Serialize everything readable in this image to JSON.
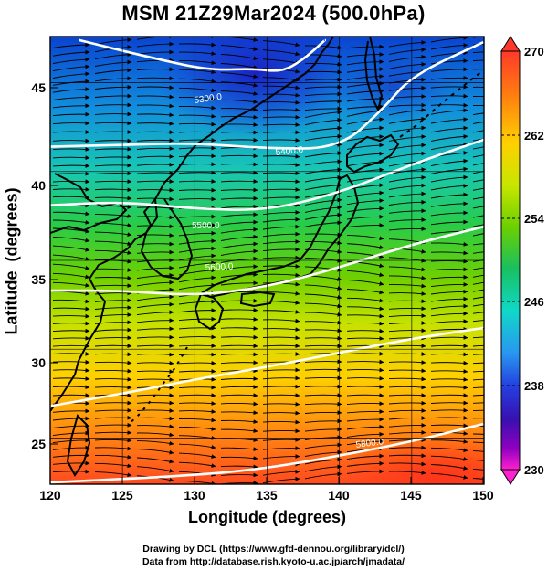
{
  "title": "MSM 21Z29Mar2024 (500.0hPa)",
  "x_axis": {
    "label": "Longitude (degrees)",
    "ticks": [
      "120",
      "125",
      "130",
      "135",
      "140",
      "145",
      "150"
    ]
  },
  "y_axis": {
    "label": "Latitude  (degrees)",
    "ticks": [
      "25",
      "30",
      "35",
      "40",
      "45"
    ]
  },
  "colorbar": {
    "ticks": [
      "270",
      "262",
      "254",
      "246",
      "238",
      "230"
    ],
    "colors": [
      "#ff3a2a",
      "#ff8a10",
      "#ffd000",
      "#c8e600",
      "#6cd000",
      "#18c060",
      "#10d8c8",
      "#2898f0",
      "#2440e0",
      "#3810b0",
      "#b800c8",
      "#ff20d0"
    ]
  },
  "contour_labels": [
    "5300.0",
    "5400.0",
    "5500.0",
    "5600.0",
    "5800.0"
  ],
  "credits": [
    "Drawing by DCL (https://www.gfd-dennou.org/library/dcl/)",
    "Data from http://database.rish.kyoto-u.ac.jp/arch/jmadata/"
  ],
  "chart_data": {
    "type": "heatmap",
    "title": "MSM 21Z29Mar2024 (500.0hPa)",
    "xlabel": "Longitude (degrees)",
    "ylabel": "Latitude  (degrees)",
    "xlim": [
      120,
      150
    ],
    "ylim": [
      22.4,
      47.6
    ],
    "color_range": [
      230,
      270
    ],
    "colorbar_ticks": [
      270,
      262,
      254,
      246,
      238,
      230
    ],
    "temperature_field_estimate": [
      {
        "lat": 46,
        "values_by_lon": {
          "120": 248,
          "125": 244,
          "130": 240,
          "135": 237,
          "140": 242,
          "145": 247,
          "150": 249
        }
      },
      {
        "lat": 40,
        "values_by_lon": {
          "120": 253,
          "125": 252,
          "130": 250,
          "135": 250,
          "140": 251,
          "145": 252,
          "150": 253
        }
      },
      {
        "lat": 35,
        "values_by_lon": {
          "120": 256,
          "125": 256,
          "130": 255,
          "135": 255,
          "140": 256,
          "145": 256,
          "150": 256
        }
      },
      {
        "lat": 30,
        "values_by_lon": {
          "120": 260,
          "125": 260,
          "130": 259,
          "135": 259,
          "140": 259,
          "145": 259,
          "150": 260
        }
      },
      {
        "lat": 26,
        "values_by_lon": {
          "120": 263,
          "125": 264,
          "130": 264,
          "135": 264,
          "140": 263,
          "145": 263,
          "150": 264
        }
      },
      {
        "lat": 23,
        "values_by_lon": {
          "120": 265,
          "125": 266,
          "130": 267,
          "135": 267,
          "140": 267,
          "145": 267,
          "150": 268
        }
      }
    ],
    "height_contours": [
      {
        "label": "5300.0",
        "points": [
          [
            122,
            47.4
          ],
          [
            127,
            46.4
          ],
          [
            131,
            45.7
          ],
          [
            134,
            45.8
          ],
          [
            136,
            45.6
          ],
          [
            137.5,
            46.3
          ],
          [
            139,
            47.4
          ]
        ]
      },
      {
        "label": "5400.0",
        "points": [
          [
            120,
            41.4
          ],
          [
            125,
            41.5
          ],
          [
            130,
            41.6
          ],
          [
            135,
            41.3
          ],
          [
            140,
            41.3
          ],
          [
            143,
            43.5
          ],
          [
            145,
            45.4
          ],
          [
            150,
            47.3
          ]
        ]
      },
      {
        "label": "5500.0",
        "points": [
          [
            120,
            38.1
          ],
          [
            125,
            38.3
          ],
          [
            130,
            37.9
          ],
          [
            135,
            37.8
          ],
          [
            140,
            38.8
          ],
          [
            145,
            40.4
          ],
          [
            150,
            41.8
          ]
        ]
      },
      {
        "label": "5600.0",
        "points": [
          [
            120,
            33.3
          ],
          [
            125,
            33.3
          ],
          [
            130,
            33.0
          ],
          [
            135,
            33.5
          ],
          [
            140,
            34.6
          ],
          [
            145,
            35.9
          ],
          [
            150,
            36.9
          ]
        ]
      },
      {
        "label": "5800.0",
        "points": [
          [
            120,
            26.8
          ],
          [
            125,
            27.5
          ],
          [
            130,
            28.3
          ],
          [
            135,
            29.0
          ],
          [
            140,
            29.8
          ],
          [
            145,
            30.6
          ],
          [
            150,
            31.2
          ]
        ]
      },
      {
        "label": "5900.0",
        "points": [
          [
            120,
            22.5
          ],
          [
            130,
            22.9
          ],
          [
            135,
            23.3
          ],
          [
            140,
            24.0
          ],
          [
            145,
            24.8
          ],
          [
            150,
            25.8
          ]
        ]
      }
    ],
    "wind": "westerly streamlines across the whole domain"
  }
}
